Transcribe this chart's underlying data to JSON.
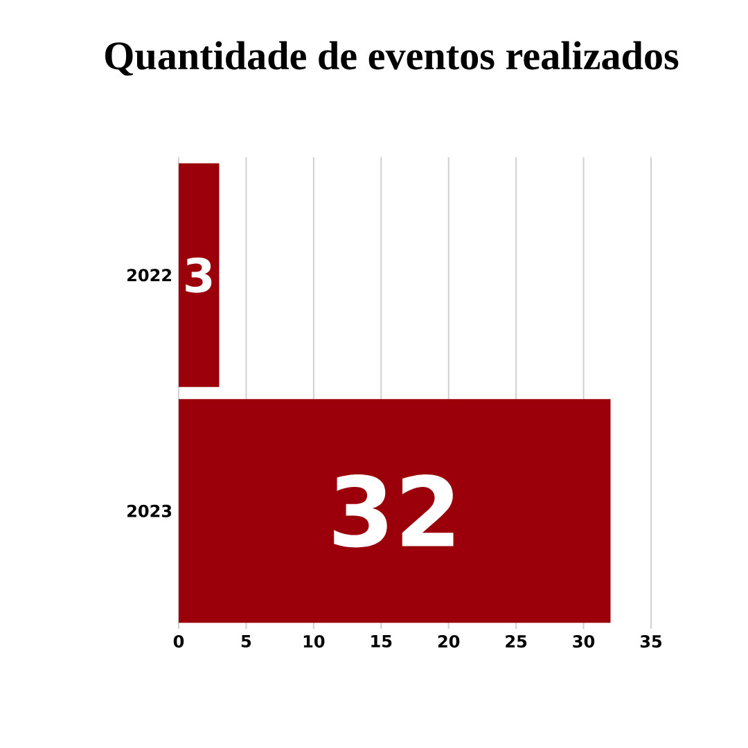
{
  "chart_data": {
    "type": "bar",
    "orientation": "horizontal",
    "title": "Quantidade de eventos realizados",
    "categories": [
      "2022",
      "2023"
    ],
    "values": [
      3,
      32
    ],
    "color": "#9b000a",
    "xlim": [
      0,
      35
    ],
    "xticks": [
      0,
      5,
      10,
      15,
      20,
      25,
      30,
      35
    ],
    "grid": "x",
    "data_labels": true
  }
}
